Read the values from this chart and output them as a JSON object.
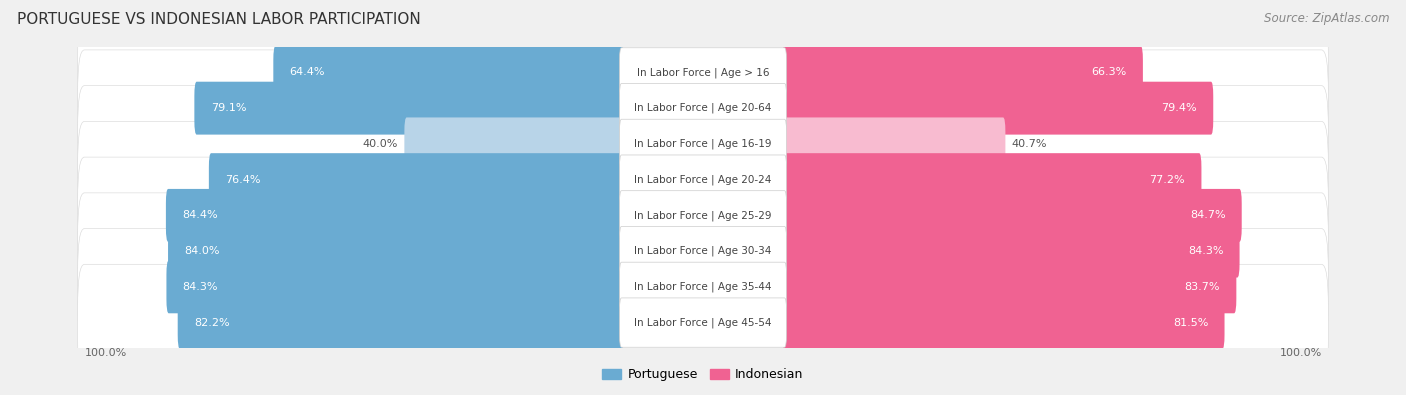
{
  "title": "PORTUGUESE VS INDONESIAN LABOR PARTICIPATION",
  "source": "Source: ZipAtlas.com",
  "categories": [
    "In Labor Force | Age > 16",
    "In Labor Force | Age 20-64",
    "In Labor Force | Age 16-19",
    "In Labor Force | Age 20-24",
    "In Labor Force | Age 25-29",
    "In Labor Force | Age 30-34",
    "In Labor Force | Age 35-44",
    "In Labor Force | Age 45-54"
  ],
  "portuguese_values": [
    64.4,
    79.1,
    40.0,
    76.4,
    84.4,
    84.0,
    84.3,
    82.2
  ],
  "indonesian_values": [
    66.3,
    79.4,
    40.7,
    77.2,
    84.7,
    84.3,
    83.7,
    81.5
  ],
  "portuguese_color": "#6aabd2",
  "portuguese_color_light": "#b8d4e8",
  "indonesian_color": "#f06292",
  "indonesian_color_light": "#f8bbd0",
  "bg_color": "#f0f0f0",
  "row_bg": "#ffffff",
  "title_fontsize": 11,
  "source_fontsize": 8.5,
  "bar_label_fontsize": 8,
  "category_fontsize": 7.5,
  "legend_fontsize": 9,
  "axis_label_fontsize": 8
}
